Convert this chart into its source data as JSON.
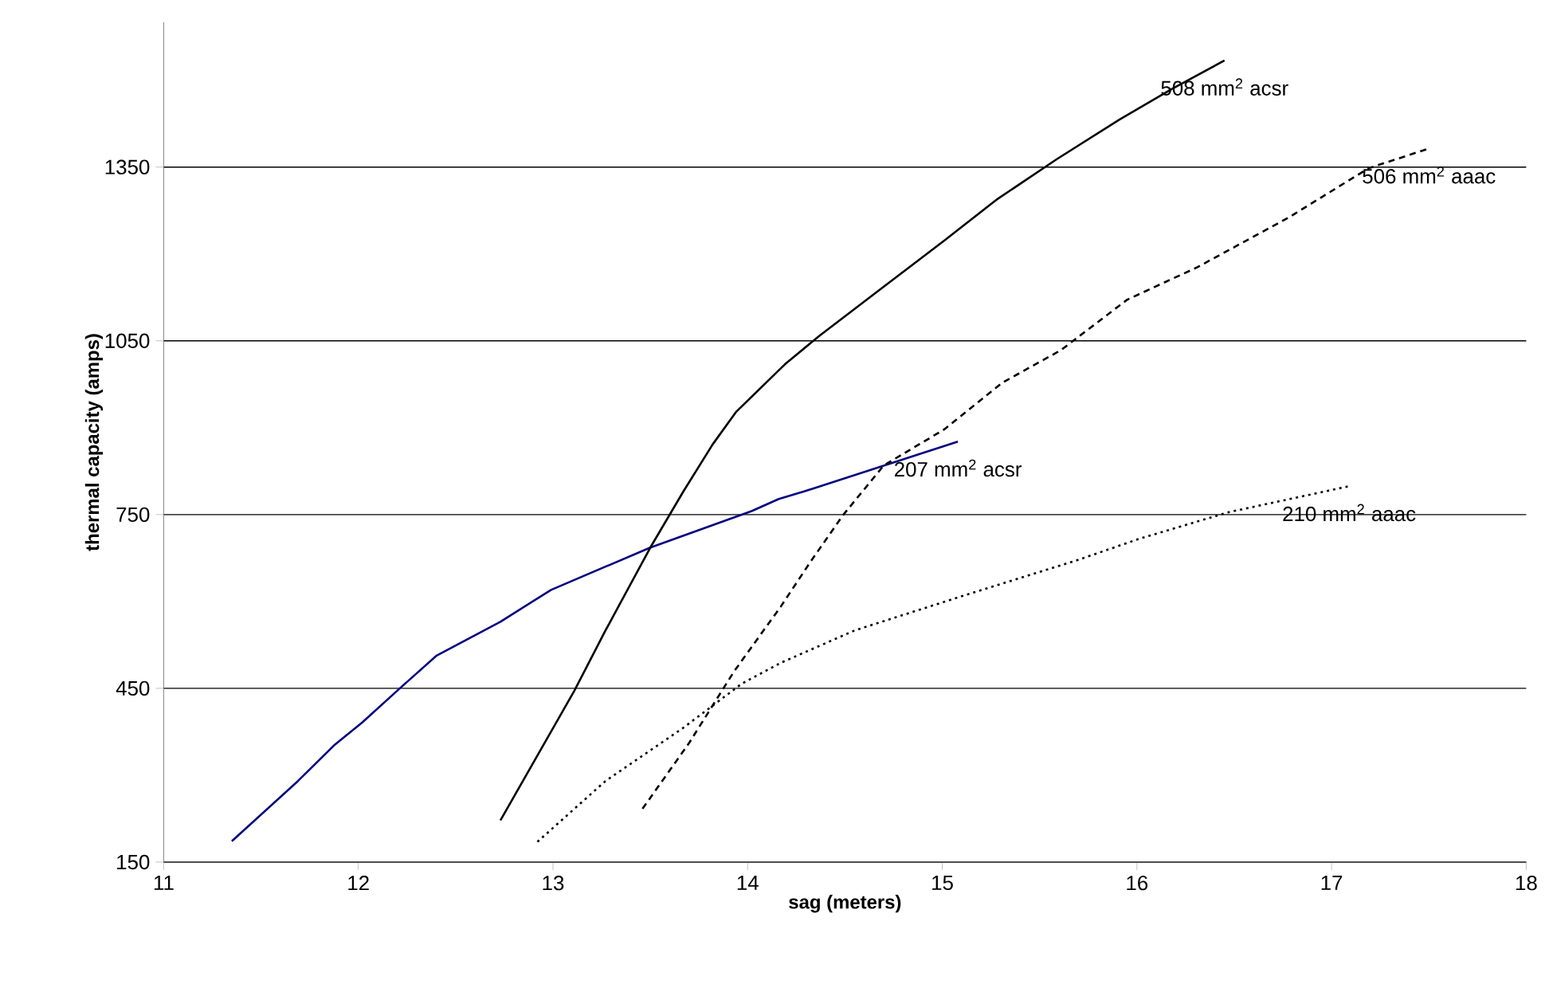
{
  "chart_data": {
    "type": "line",
    "xlabel": "sag (meters)",
    "ylabel": "thermal capacity (amps)",
    "xlim": [
      11,
      18
    ],
    "ylim": [
      150,
      1600
    ],
    "xticks": [
      11,
      12,
      13,
      14,
      15,
      16,
      17,
      18
    ],
    "yticks": [
      150,
      450,
      750,
      1050,
      1350
    ],
    "grid": "y",
    "legend": false,
    "marker": "none",
    "series": [
      {
        "name": "207 mm$^{2}$ acsr",
        "color": "#000080",
        "line_style": "solid",
        "x": [
          11.35,
          11.69,
          11.88,
          12.02,
          12.21,
          12.4,
          12.73,
          12.99,
          13.5,
          14.02,
          14.16,
          14.29,
          15.08
        ],
        "values": [
          186,
          290,
          353,
          391,
          449,
          506,
          565,
          620,
          693,
          756,
          777,
          790,
          876
        ]
      },
      {
        "name": "508 mm$^{2}$ acsr",
        "color": "#000000",
        "line_style": "solid",
        "x": [
          12.73,
          13.11,
          13.27,
          13.5,
          13.67,
          13.82,
          13.94,
          14.19,
          14.37,
          14.67,
          15.01,
          15.28,
          15.59,
          15.91,
          16.18,
          16.45
        ],
        "values": [
          222,
          446,
          550,
          693,
          790,
          871,
          927,
          1009,
          1059,
          1136,
          1223,
          1294,
          1364,
          1432,
          1485,
          1534
        ]
      },
      {
        "name": "506 mm$^{2}$ aaac",
        "color": "#000000",
        "line_style": "dashed",
        "x": [
          13.46,
          13.7,
          13.93,
          14.17,
          14.32,
          14.49,
          14.7,
          15.01,
          15.31,
          15.61,
          15.95,
          16.31,
          16.78,
          17.19,
          17.5
        ],
        "values": [
          242,
          356,
          479,
          591,
          667,
          749,
          835,
          897,
          978,
          1034,
          1121,
          1177,
          1263,
          1348,
          1382
        ]
      },
      {
        "name": "210 mm$^{2}$ aaac",
        "color": "#000000",
        "line_style": "dotted",
        "x": [
          12.92,
          13.27,
          13.67,
          13.97,
          14.17,
          14.55,
          15.1,
          15.7,
          16.01,
          16.47,
          17.09
        ],
        "values": [
          185,
          290,
          382,
          458,
          494,
          550,
          609,
          672,
          708,
          754,
          799
        ]
      }
    ]
  }
}
